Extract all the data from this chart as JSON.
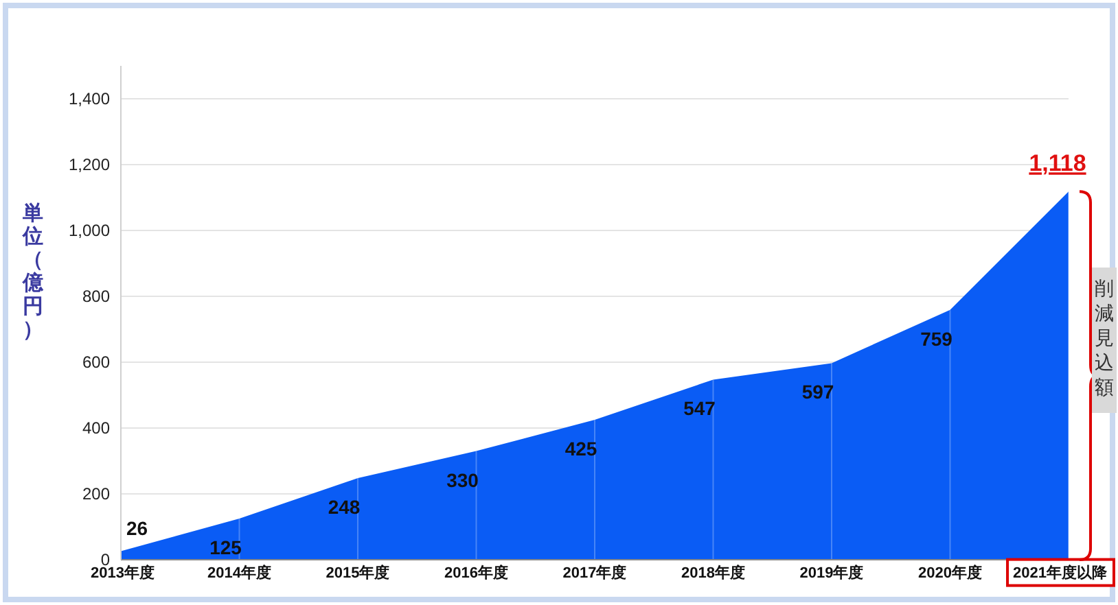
{
  "chart_data": {
    "type": "area",
    "ylabel": "単位（億円）",
    "categories": [
      "2013年度",
      "2014年度",
      "2015年度",
      "2016年度",
      "2017年度",
      "2018年度",
      "2019年度",
      "2020年度",
      "2021年度以降"
    ],
    "values": [
      26,
      125,
      248,
      330,
      425,
      547,
      597,
      759,
      1118
    ],
    "color": "#0a5cf5",
    "ylim": [
      0,
      1500
    ],
    "yticks": [
      0,
      {
        "value": 200,
        "label": "200"
      },
      {
        "value": 400,
        "label": "400"
      },
      {
        "value": 600,
        "label": "600"
      },
      {
        "value": 800,
        "label": "800"
      },
      {
        "value": 1000,
        "label": "1,000"
      },
      {
        "value": 1200,
        "label": "1,200"
      },
      {
        "value": 1400,
        "label": "1,400"
      }
    ],
    "grid": "y",
    "value_labels": [
      "26",
      "125",
      "248",
      "330",
      "425",
      "547",
      "597",
      "759",
      "1,118"
    ],
    "annotations": [
      "削減見込額"
    ]
  }
}
